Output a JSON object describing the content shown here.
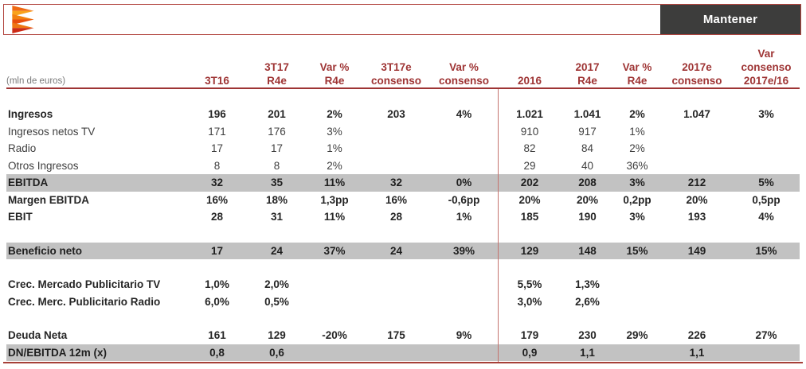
{
  "colors": {
    "accent_red": "#9e3434",
    "divider_red": "#c4736d",
    "row_highlight_gray": "#c2c2c2",
    "badge_background": "#3d3d3c",
    "logo_orange": "#f9a21b",
    "logo_red": "#cd2b16"
  },
  "topbar": {
    "recommendation_label": "Mantener"
  },
  "table": {
    "unit_label": "(mln de euros)",
    "columns": [
      {
        "lines": [
          "",
          "",
          "3T16"
        ]
      },
      {
        "lines": [
          "",
          "3T17",
          "R4e"
        ]
      },
      {
        "lines": [
          "",
          "Var %",
          "R4e"
        ]
      },
      {
        "lines": [
          "",
          "3T17e",
          "consenso"
        ]
      },
      {
        "lines": [
          "",
          "Var %",
          "consenso"
        ]
      },
      {
        "lines": [
          "",
          "",
          "2016"
        ]
      },
      {
        "lines": [
          "",
          "2017",
          "R4e"
        ]
      },
      {
        "lines": [
          "",
          "Var %",
          "R4e"
        ]
      },
      {
        "lines": [
          "",
          "2017e",
          "consenso"
        ]
      },
      {
        "lines": [
          "Var",
          "consenso",
          "2017e/16"
        ]
      }
    ],
    "rows": [
      {
        "label": "Ingresos",
        "bold": true,
        "highlight": false,
        "gap_before": false,
        "values": [
          "196",
          "201",
          "2%",
          "203",
          "4%",
          "1.021",
          "1.041",
          "2%",
          "1.047",
          "3%"
        ]
      },
      {
        "label": "Ingresos netos TV",
        "bold": false,
        "highlight": false,
        "gap_before": false,
        "values": [
          "171",
          "176",
          "3%",
          "",
          "",
          "910",
          "917",
          "1%",
          "",
          ""
        ]
      },
      {
        "label": "Radio",
        "bold": false,
        "highlight": false,
        "gap_before": false,
        "values": [
          "17",
          "17",
          "1%",
          "",
          "",
          "82",
          "84",
          "2%",
          "",
          ""
        ]
      },
      {
        "label": "Otros Ingresos",
        "bold": false,
        "highlight": false,
        "gap_before": false,
        "values": [
          "8",
          "8",
          "2%",
          "",
          "",
          "29",
          "40",
          "36%",
          "",
          ""
        ]
      },
      {
        "label": "EBITDA",
        "bold": true,
        "highlight": true,
        "gap_before": false,
        "values": [
          "32",
          "35",
          "11%",
          "32",
          "0%",
          "202",
          "208",
          "3%",
          "212",
          "5%"
        ]
      },
      {
        "label": "Margen EBITDA",
        "bold": true,
        "highlight": false,
        "gap_before": false,
        "values": [
          "16%",
          "18%",
          "1,3pp",
          "16%",
          "-0,6pp",
          "20%",
          "20%",
          "0,2pp",
          "20%",
          "0,5pp"
        ]
      },
      {
        "label": "EBIT",
        "bold": true,
        "highlight": false,
        "gap_before": false,
        "values": [
          "28",
          "31",
          "11%",
          "28",
          "1%",
          "185",
          "190",
          "3%",
          "193",
          "4%"
        ]
      },
      {
        "label": "Beneficio neto",
        "bold": true,
        "highlight": true,
        "gap_before": true,
        "values": [
          "17",
          "24",
          "37%",
          "24",
          "39%",
          "129",
          "148",
          "15%",
          "149",
          "15%"
        ]
      },
      {
        "label": "Crec. Mercado Publicitario TV",
        "bold": true,
        "highlight": false,
        "gap_before": true,
        "values": [
          "1,0%",
          "2,0%",
          "",
          "",
          "",
          "5,5%",
          "1,3%",
          "",
          "",
          ""
        ]
      },
      {
        "label": "Crec. Merc. Publicitario Radio",
        "bold": true,
        "highlight": false,
        "gap_before": false,
        "values": [
          "6,0%",
          "0,5%",
          "",
          "",
          "",
          "3,0%",
          "2,6%",
          "",
          "",
          ""
        ]
      },
      {
        "label": "Deuda Neta",
        "bold": true,
        "highlight": false,
        "gap_before": true,
        "values": [
          "161",
          "129",
          "-20%",
          "175",
          "9%",
          "179",
          "230",
          "29%",
          "226",
          "27%"
        ]
      },
      {
        "label": "DN/EBITDA 12m (x)",
        "bold": true,
        "highlight": true,
        "gap_before": false,
        "values": [
          "0,8",
          "0,6",
          "",
          "",
          "",
          "0,9",
          "1,1",
          "",
          "1,1",
          ""
        ]
      }
    ]
  }
}
